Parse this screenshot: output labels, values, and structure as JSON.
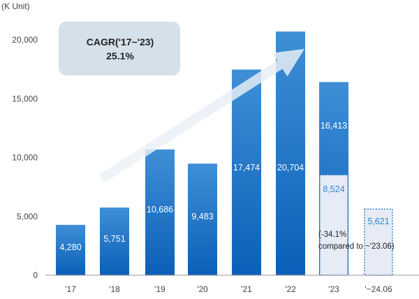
{
  "chart_data": {
    "type": "bar",
    "unit_label": "(K Unit)",
    "categories": [
      "'17",
      "'18",
      "'19",
      "'20",
      "'21",
      "'22",
      "'23",
      "'~24.06"
    ],
    "category_labels": [
      "'17",
      "'18",
      "'19",
      "'20",
      "'21",
      "'22",
      "'23",
      "'~24.06"
    ],
    "values": [
      4280,
      5751,
      10686,
      9483,
      17474,
      20704,
      16413,
      null
    ],
    "value_labels": [
      "4,280",
      "5,751",
      "10,686",
      "9,483",
      "17,474",
      "20,704",
      "16,413",
      ""
    ],
    "partial_series": {
      "values": [
        null,
        null,
        null,
        null,
        null,
        null,
        8524,
        5621
      ],
      "value_labels": [
        "",
        "",
        "",
        "",
        "",
        "",
        "8,524",
        "5,621"
      ]
    },
    "ylim": [
      0,
      20000
    ],
    "yticks": [
      0,
      5000,
      10000,
      15000,
      20000
    ],
    "ytick_labels": [
      "0",
      "5,000",
      "10,000",
      "15,000",
      "20,000"
    ],
    "grid": false,
    "annotations": {
      "cagr_title": "CAGR('17~'23)",
      "cagr_value": "25.1%",
      "change_note_line1": "(-34.1%",
      "change_note_line2": "compared to ~'23.06)"
    },
    "colors": {
      "bar_top": "#3f8fd6",
      "bar_bottom": "#0b5fb8",
      "partial_fill": "#e6ebf5",
      "partial_border": "#2a7fd0",
      "partial_text": "#2f86d2",
      "callout_box": "#d5e1ea",
      "arrow": "#e6eef5",
      "axis": "#999999"
    }
  }
}
